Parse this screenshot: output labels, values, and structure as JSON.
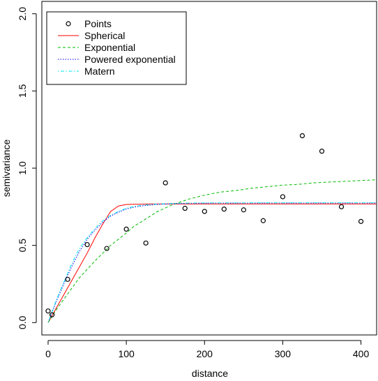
{
  "chart_data": {
    "type": "scatter",
    "title": "",
    "xlabel": "distance",
    "ylabel": "semivariance",
    "xlim": [
      -8,
      420
    ],
    "ylim": [
      -0.08,
      2.08
    ],
    "x_ticks": [
      0,
      100,
      200,
      300,
      400
    ],
    "y_ticks": [
      0.0,
      0.5,
      1.0,
      1.5,
      2.0
    ],
    "x_tick_labels": [
      "0",
      "100",
      "200",
      "300",
      "400"
    ],
    "y_tick_labels": [
      "0.0",
      "0.5",
      "1.0",
      "1.5",
      "2.0"
    ],
    "legend_position": "top-left",
    "points": {
      "name": "Points",
      "x": [
        0,
        5,
        25,
        50,
        75,
        100,
        125,
        150,
        175,
        200,
        225,
        250,
        275,
        300,
        325,
        350,
        375,
        400
      ],
      "y": [
        0.075,
        0.05,
        0.28,
        0.505,
        0.48,
        0.605,
        0.515,
        0.905,
        0.74,
        0.72,
        0.735,
        0.73,
        0.66,
        0.815,
        1.21,
        1.11,
        0.75,
        0.655
      ]
    },
    "series": [
      {
        "name": "Spherical",
        "color": "#ff0000",
        "dash": "solid",
        "x": [
          0,
          10,
          20,
          30,
          40,
          50,
          60,
          70,
          80,
          90,
          100,
          110,
          120,
          130,
          140,
          150,
          200,
          300,
          420
        ],
        "y": [
          0.0,
          0.09,
          0.18,
          0.27,
          0.36,
          0.45,
          0.55,
          0.64,
          0.72,
          0.755,
          0.765,
          0.766,
          0.767,
          0.768,
          0.768,
          0.768,
          0.768,
          0.768,
          0.768
        ]
      },
      {
        "name": "Exponential",
        "color": "#00bb00",
        "dash": "dashed",
        "x": [
          0,
          10,
          20,
          30,
          40,
          50,
          60,
          70,
          80,
          90,
          100,
          110,
          120,
          140,
          160,
          180,
          200,
          220,
          240,
          260,
          280,
          300,
          320,
          340,
          360,
          380,
          400,
          420
        ],
        "y": [
          0.0,
          0.08,
          0.15,
          0.22,
          0.29,
          0.345,
          0.4,
          0.45,
          0.5,
          0.54,
          0.58,
          0.625,
          0.655,
          0.72,
          0.765,
          0.8,
          0.825,
          0.845,
          0.855,
          0.87,
          0.88,
          0.89,
          0.895,
          0.905,
          0.91,
          0.915,
          0.92,
          0.925
        ]
      },
      {
        "name": "Powered exponential",
        "color": "#0000ff",
        "dash": "dotted",
        "x": [
          0,
          10,
          20,
          30,
          40,
          50,
          60,
          70,
          80,
          90,
          100,
          110,
          120,
          140,
          160,
          180,
          200,
          300,
          420
        ],
        "y": [
          0.0,
          0.13,
          0.25,
          0.36,
          0.46,
          0.54,
          0.6,
          0.65,
          0.69,
          0.715,
          0.735,
          0.748,
          0.756,
          0.765,
          0.77,
          0.772,
          0.773,
          0.774,
          0.774
        ]
      },
      {
        "name": "Matern",
        "color": "#00e5ee",
        "dash": "dotdash",
        "x": [
          0,
          10,
          20,
          30,
          40,
          50,
          60,
          70,
          80,
          90,
          100,
          110,
          120,
          140,
          160,
          180,
          200,
          300,
          420
        ],
        "y": [
          0.0,
          0.14,
          0.26,
          0.38,
          0.48,
          0.55,
          0.61,
          0.66,
          0.695,
          0.72,
          0.74,
          0.752,
          0.76,
          0.768,
          0.772,
          0.774,
          0.775,
          0.776,
          0.776
        ]
      }
    ]
  }
}
